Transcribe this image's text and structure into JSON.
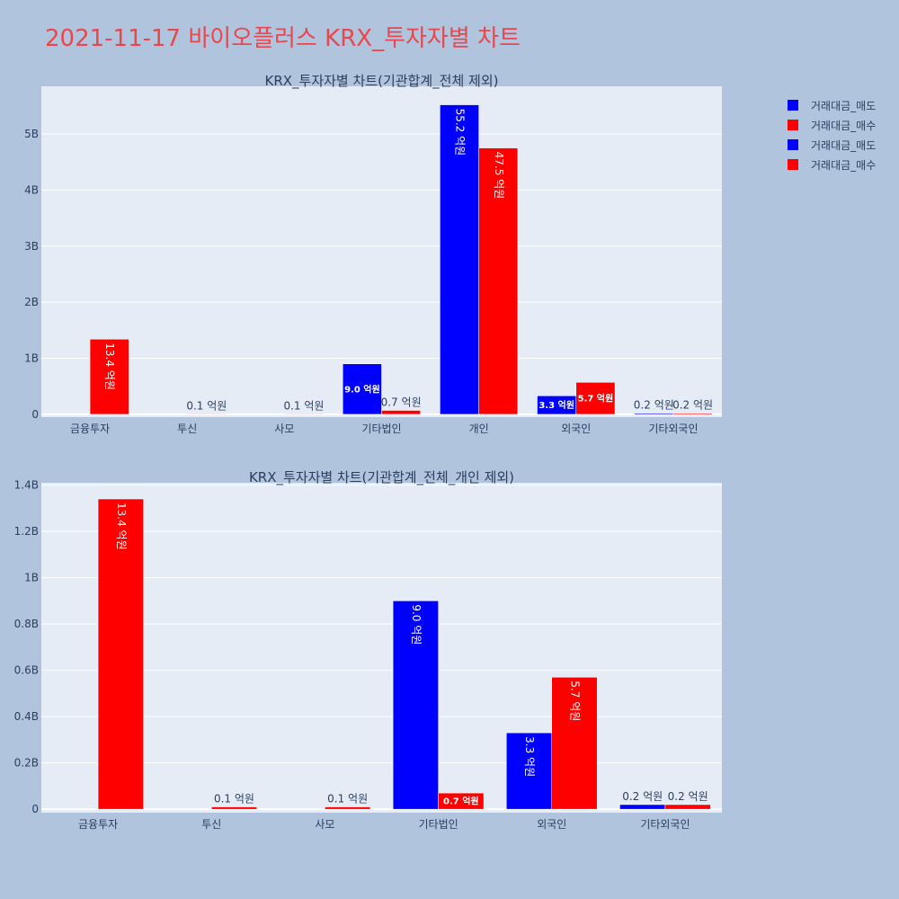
{
  "page": {
    "title": "2021-11-17 바이오플러스 KRX_투자자별 차트"
  },
  "colors": {
    "sell": "#0000ff",
    "buy": "#ff0000",
    "plot_bg": "#e5ecf6",
    "page_bg": "#b0c4de"
  },
  "legend": [
    {
      "label": "거래대금_매도",
      "color": "#0000ff"
    },
    {
      "label": "거래대금_매수",
      "color": "#ff0000"
    },
    {
      "label": "거래대금_매도",
      "color": "#0000ff"
    },
    {
      "label": "거래대금_매수",
      "color": "#ff0000"
    }
  ],
  "chart_data": [
    {
      "type": "bar",
      "title": "KRX_투자자별 차트(기관합계_전체 제외)",
      "categories": [
        "금융투자",
        "투신",
        "사모",
        "기타법인",
        "개인",
        "외국인",
        "기타외국인"
      ],
      "series": [
        {
          "name": "거래대금_매도",
          "color": "#0000ff",
          "values": [
            0,
            0,
            0,
            900000000,
            5520000000,
            330000000,
            20000000
          ],
          "labels": [
            "",
            "",
            "",
            "9.0 억원",
            "55.2 억원",
            "3.3 억원",
            "0.2 억원"
          ]
        },
        {
          "name": "거래대금_매수",
          "color": "#ff0000",
          "values": [
            1340000000,
            10000000,
            10000000,
            70000000,
            4750000000,
            570000000,
            20000000
          ],
          "labels": [
            "13.4 억원",
            "0.1 억원",
            "0.1 억원",
            "0.7 억원",
            "47.5 억원",
            "5.7 억원",
            "0.2 억원"
          ]
        }
      ],
      "y_ticks": [
        "0",
        "1B",
        "2B",
        "3B",
        "4B",
        "5B"
      ],
      "y_tick_values": [
        0,
        1000000000,
        2000000000,
        3000000000,
        4000000000,
        5000000000
      ],
      "ylim": [
        -50000000,
        5850000000
      ]
    },
    {
      "type": "bar",
      "title": "KRX_투자자별 차트(기관합계_전체_개인 제외)",
      "categories": [
        "금융투자",
        "투신",
        "사모",
        "기타법인",
        "외국인",
        "기타외국인"
      ],
      "series": [
        {
          "name": "거래대금_매도",
          "color": "#0000ff",
          "values": [
            0,
            0,
            0,
            900000000,
            330000000,
            20000000
          ],
          "labels": [
            "",
            "",
            "",
            "9.0 억원",
            "3.3 억원",
            "0.2 억원"
          ]
        },
        {
          "name": "거래대금_매수",
          "color": "#ff0000",
          "values": [
            1340000000,
            10000000,
            10000000,
            70000000,
            570000000,
            20000000
          ],
          "labels": [
            "13.4 억원",
            "0.1 억원",
            "0.1 억원",
            "0.7 억원",
            "5.7 억원",
            "0.2 억원"
          ]
        }
      ],
      "y_ticks": [
        "0",
        "0.2B",
        "0.4B",
        "0.6B",
        "0.8B",
        "1B",
        "1.2B",
        "1.4B"
      ],
      "y_tick_values": [
        0,
        200000000,
        400000000,
        600000000,
        800000000,
        1000000000,
        1200000000,
        1400000000
      ],
      "ylim": [
        -15000000,
        1410000000
      ]
    }
  ]
}
